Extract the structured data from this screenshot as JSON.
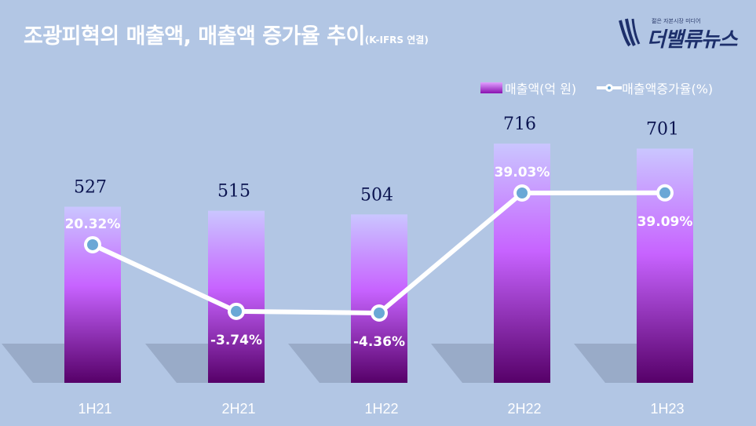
{
  "header": {
    "title": "조광피혁의 매출액, 매출액 증가율 추이",
    "subtitle": "(K-IFRS 연결)"
  },
  "logo": {
    "tagline": "젊은 자본시장 미디어",
    "brand": "더밸류뉴스"
  },
  "legend": {
    "revenue": "매출액(억 원)",
    "growth": "매출액증가율(%)"
  },
  "chart_data": {
    "type": "bar",
    "categories": [
      "1H21",
      "2H21",
      "1H22",
      "2H22",
      "1H23"
    ],
    "series": [
      {
        "name": "매출액(억 원)",
        "type": "bar",
        "values": [
          527,
          515,
          504,
          716,
          701
        ]
      },
      {
        "name": "매출액증가율(%)",
        "type": "line",
        "values": [
          20.32,
          -3.74,
          -4.36,
          39.03,
          39.09
        ]
      }
    ],
    "value_labels": [
      "527",
      "515",
      "504",
      "716",
      "701"
    ],
    "growth_labels": [
      "20.32%",
      "-3.74%",
      "-4.36%",
      "39.03%",
      "39.09%"
    ],
    "colors": {
      "background": "#b2c6e4",
      "bar_top": "#c9c4ff",
      "bar_mid": "#c760ff",
      "bar_bottom": "#5a0070",
      "line": "#ffffff",
      "marker": "#6aa8d6"
    },
    "legend_position": "top-right",
    "grid": false
  }
}
